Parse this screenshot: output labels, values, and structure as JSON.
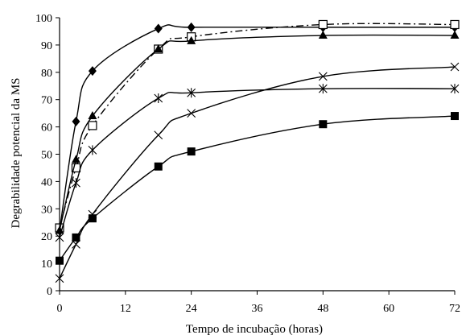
{
  "chart_data": {
    "type": "line",
    "title": "",
    "xlabel": "Tempo de incubação (horas)",
    "ylabel": "Degrabilidade potencial da MS",
    "xlim": [
      0,
      72
    ],
    "ylim": [
      0,
      100
    ],
    "x_ticks": [
      0,
      12,
      24,
      36,
      48,
      60,
      72
    ],
    "y_ticks": [
      0,
      10,
      20,
      30,
      40,
      50,
      60,
      70,
      80,
      90,
      100
    ],
    "grid": false,
    "legend": "none",
    "series": [
      {
        "marker": "diamond",
        "line_style": "solid",
        "color": "#000000",
        "x": [
          0,
          3,
          6,
          18,
          24,
          48,
          72
        ],
        "values": [
          22,
          62,
          80.5,
          96,
          96.5,
          96.5,
          96.5
        ]
      },
      {
        "marker": "open-square",
        "line_style": "dash-dot",
        "color": "#000000",
        "x": [
          0,
          3,
          6,
          18,
          24,
          48,
          72
        ],
        "values": [
          23,
          45,
          60.5,
          88.5,
          93,
          97.5,
          97.5
        ]
      },
      {
        "marker": "triangle",
        "line_style": "solid",
        "color": "#000000",
        "x": [
          0,
          3,
          6,
          18,
          24,
          48,
          72
        ],
        "values": [
          22,
          48,
          64,
          88.5,
          91.5,
          93.5,
          93.5
        ]
      },
      {
        "marker": "asterisk",
        "line_style": "solid",
        "color": "#000000",
        "x": [
          0,
          3,
          6,
          18,
          24,
          48,
          72
        ],
        "values": [
          19.5,
          39.5,
          51.5,
          70.5,
          72.5,
          74,
          74
        ]
      },
      {
        "marker": "cross",
        "line_style": "solid",
        "color": "#000000",
        "x": [
          0,
          3,
          6,
          18,
          24,
          48,
          72
        ],
        "values": [
          4.5,
          17,
          28,
          57,
          65,
          78.5,
          82
        ]
      },
      {
        "marker": "filled-square",
        "line_style": "solid",
        "color": "#000000",
        "x": [
          0,
          3,
          6,
          18,
          24,
          48,
          72
        ],
        "values": [
          11,
          19.5,
          26.5,
          45.5,
          51,
          61,
          64
        ]
      }
    ]
  }
}
